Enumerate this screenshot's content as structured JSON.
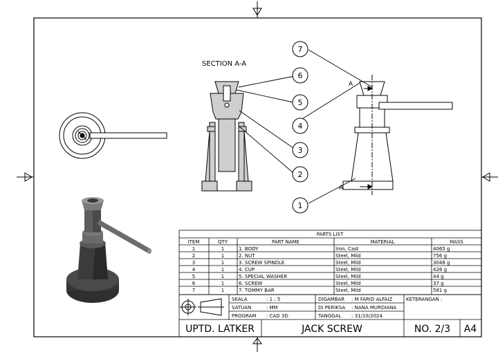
{
  "section_label": "SECTION A-A",
  "section_marker": "A",
  "balloons": [
    "1",
    "2",
    "3",
    "4",
    "5",
    "6",
    "7"
  ],
  "parts_list": {
    "title": "PARTS LIST",
    "headers": [
      "ITEM",
      "QTY",
      "PART NAME",
      "MATERIAL",
      "MASS"
    ],
    "rows": [
      [
        "1",
        "1",
        "1. BODY",
        "Iron, Cast",
        "4065 g"
      ],
      [
        "2",
        "1",
        "2. NUT",
        "Steel, Mild",
        "756 g"
      ],
      [
        "3",
        "1",
        "3. SCREW SPINDLE",
        "Steel, Mild",
        "3046 g"
      ],
      [
        "4",
        "1",
        "4. CUP",
        "Steel, Mild",
        "426 g"
      ],
      [
        "5",
        "1",
        "5. SPECIAL WASHER",
        "Steel, Mild",
        "44 g"
      ],
      [
        "6",
        "1",
        "6. SCREW",
        "Steel, Mild",
        "37 g"
      ],
      [
        "7",
        "1",
        "7. TOMMY BAR",
        "Steel, Mild",
        "581 g"
      ]
    ]
  },
  "title_block": {
    "skala_label": "SKALA",
    "skala_value": ": 1 : 5",
    "satuan_label": "SATUAN",
    "satuan_value": ": MM",
    "program_label": "PROGRAM",
    "program_value": ": CAD 3D",
    "digambar_label": "DIGAMBAR",
    "digambar_value": ": M FARID ALFAIZ",
    "diperiksa_label": "DI PERIKSA",
    "diperiksa_value": ": NANA MURDIANA",
    "tanggal_label": "TANGGAL",
    "tanggal_value": ": 31/10/2024",
    "keterangan": "KETERANGAN :",
    "org": "UPTD. LATKER",
    "drawing_title": "JACK SCREW",
    "sheet_no": "NO. 2/3",
    "paper": "A4"
  }
}
